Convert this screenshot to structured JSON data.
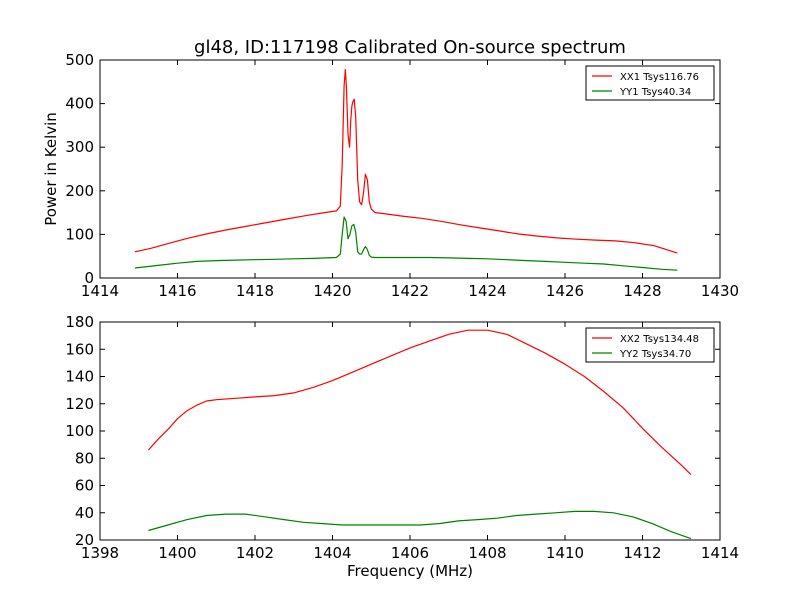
{
  "figure": {
    "title": "gl48, ID:117198 Calibrated On-source spectrum",
    "xlabel": "Frequency (MHz)",
    "ylabel": "Power in Kelvin"
  },
  "chart_data": [
    {
      "type": "line",
      "xlim": [
        1414,
        1430
      ],
      "ylim": [
        0,
        500
      ],
      "xticks": [
        "1414",
        "1416",
        "1418",
        "1420",
        "1422",
        "1424",
        "1426",
        "1428",
        "1430"
      ],
      "yticks": [
        "0",
        "100",
        "200",
        "300",
        "400",
        "500"
      ],
      "legend_position": "top-right",
      "grid": false,
      "series": [
        {
          "name": "XX1 Tsys116.76",
          "color": "#ff0000",
          "x": [
            1414.9,
            1415.3,
            1415.8,
            1416.3,
            1416.8,
            1417.3,
            1417.8,
            1418.3,
            1418.8,
            1419.3,
            1419.8,
            1420.1,
            1420.2,
            1420.25,
            1420.3,
            1420.33,
            1420.36,
            1420.4,
            1420.44,
            1420.47,
            1420.5,
            1420.53,
            1420.56,
            1420.6,
            1420.65,
            1420.7,
            1420.75,
            1420.8,
            1420.85,
            1420.9,
            1420.95,
            1421.0,
            1421.1,
            1421.3,
            1421.8,
            1422.3,
            1422.8,
            1423.3,
            1423.8,
            1424.3,
            1424.8,
            1425.3,
            1425.8,
            1426.3,
            1426.8,
            1427.3,
            1427.8,
            1428.3,
            1428.9
          ],
          "y": [
            60,
            68,
            80,
            92,
            102,
            111,
            119,
            127,
            135,
            143,
            150,
            154,
            165,
            260,
            440,
            478,
            440,
            330,
            300,
            360,
            395,
            405,
            410,
            370,
            225,
            175,
            168,
            195,
            238,
            225,
            175,
            158,
            150,
            148,
            142,
            137,
            130,
            122,
            115,
            108,
            101,
            96,
            92,
            89,
            87,
            85,
            81,
            74,
            57
          ]
        },
        {
          "name": "YY1 Tsys40.34",
          "color": "#008000",
          "x": [
            1414.9,
            1415.5,
            1416.0,
            1416.5,
            1417.0,
            1417.5,
            1418.0,
            1418.5,
            1419.0,
            1419.5,
            1420.1,
            1420.2,
            1420.25,
            1420.3,
            1420.35,
            1420.4,
            1420.45,
            1420.5,
            1420.55,
            1420.6,
            1420.65,
            1420.7,
            1420.75,
            1420.8,
            1420.85,
            1420.9,
            1420.95,
            1421.0,
            1421.1,
            1421.5,
            1422.0,
            1422.5,
            1423.0,
            1423.5,
            1424.0,
            1424.5,
            1425.0,
            1425.5,
            1426.0,
            1426.5,
            1427.0,
            1427.5,
            1428.0,
            1428.5,
            1428.9
          ],
          "y": [
            23,
            29,
            34,
            38,
            40,
            41,
            42,
            43,
            44,
            45,
            47,
            55,
            100,
            140,
            130,
            90,
            100,
            120,
            123,
            105,
            60,
            55,
            55,
            65,
            72,
            65,
            52,
            48,
            47,
            47,
            47,
            47,
            46,
            45,
            44,
            42,
            40,
            38,
            36,
            34,
            32,
            28,
            24,
            20,
            18
          ]
        }
      ]
    },
    {
      "type": "line",
      "xlim": [
        1398,
        1414
      ],
      "ylim": [
        20,
        180
      ],
      "xticks": [
        "1398",
        "1400",
        "1402",
        "1404",
        "1406",
        "1408",
        "1410",
        "1412",
        "1414"
      ],
      "yticks": [
        "20",
        "40",
        "60",
        "80",
        "100",
        "120",
        "140",
        "160",
        "180"
      ],
      "legend_position": "top-right",
      "grid": false,
      "series": [
        {
          "name": "XX2 Tsys134.48",
          "color": "#ff0000",
          "x": [
            1399.25,
            1399.5,
            1399.75,
            1400.0,
            1400.25,
            1400.5,
            1400.75,
            1401.0,
            1401.5,
            1402.0,
            1402.5,
            1403.0,
            1403.5,
            1404.0,
            1404.5,
            1405.0,
            1405.5,
            1406.0,
            1406.5,
            1407.0,
            1407.5,
            1408.0,
            1408.5,
            1409.0,
            1409.5,
            1410.0,
            1410.5,
            1411.0,
            1411.5,
            1412.0,
            1412.5,
            1413.0,
            1413.25
          ],
          "y": [
            86,
            94,
            101,
            109,
            115,
            119,
            122,
            123,
            124,
            125,
            126,
            128,
            132,
            137,
            143,
            149,
            155,
            161,
            166,
            171,
            174,
            174,
            171,
            164,
            157,
            149,
            140,
            129,
            117,
            102,
            88,
            75,
            68
          ]
        },
        {
          "name": "YY2 Tsys34.70",
          "color": "#008000",
          "x": [
            1399.25,
            1399.75,
            1400.25,
            1400.75,
            1401.25,
            1401.75,
            1402.25,
            1402.75,
            1403.25,
            1403.75,
            1404.25,
            1404.75,
            1405.25,
            1405.75,
            1406.25,
            1406.75,
            1407.25,
            1407.75,
            1408.25,
            1408.75,
            1409.25,
            1409.75,
            1410.25,
            1410.75,
            1411.25,
            1411.75,
            1412.25,
            1412.75,
            1413.25
          ],
          "y": [
            27,
            31,
            35,
            38,
            39,
            39,
            37,
            35,
            33,
            32,
            31,
            31,
            31,
            31,
            31,
            32,
            34,
            35,
            36,
            38,
            39,
            40,
            41,
            41,
            40,
            37,
            32,
            26,
            21
          ]
        }
      ]
    }
  ]
}
